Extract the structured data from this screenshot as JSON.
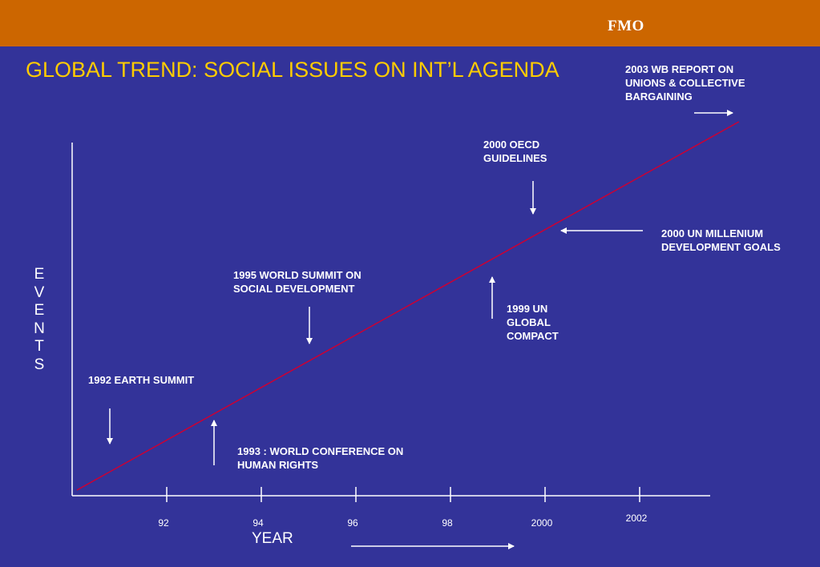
{
  "header": {
    "logo_text": "FMO",
    "bar_color": "#cc6600"
  },
  "colors": {
    "background": "#333399",
    "title": "#ffcc00",
    "trend_line": "#cc0033",
    "axis": "#ffffff"
  },
  "chart_data": {
    "type": "line",
    "title": "GLOBAL TREND: SOCIAL ISSUES ON INT’L AGENDA",
    "xlabel": "YEAR",
    "ylabel": "EVENTS",
    "x_ticks": [
      {
        "value": 1992,
        "label": "92"
      },
      {
        "value": 1994,
        "label": "94"
      },
      {
        "value": 1996,
        "label": "96"
      },
      {
        "value": 1998,
        "label": "98"
      },
      {
        "value": 2000,
        "label": "2000"
      },
      {
        "value": 2002,
        "label": "2002"
      }
    ],
    "xlim": [
      1990,
      2003
    ],
    "ylim": [
      0,
      10
    ],
    "grid": false,
    "legend": "none",
    "series": [
      {
        "x": [
          1990.1,
          2004.1
        ],
        "y": [
          0,
          10
        ]
      }
    ],
    "annotations": [
      {
        "text": "1992 EARTH SUMMIT",
        "year": 1992,
        "arrow": "down"
      },
      {
        "text": "1993 : WORLD CONFERENCE ON HUMAN RIGHTS",
        "year": 1993,
        "arrow": "up"
      },
      {
        "text": "1995 WORLD SUMMIT ON SOCIAL DEVELOPMENT",
        "year": 1995,
        "arrow": "down"
      },
      {
        "text": "1999 UN GLOBAL COMPACT",
        "year": 1999,
        "arrow": "up"
      },
      {
        "text": "2000 OECD GUIDELINES",
        "year": 2000,
        "arrow": "down"
      },
      {
        "text": "2000 UN MILLENIUM DEVELOPMENT GOALS",
        "year": 2000,
        "arrow": "left"
      },
      {
        "text": "2003 WB REPORT ON UNIONS & COLLECTIVE BARGAINING",
        "year": 2003,
        "arrow": "right"
      }
    ]
  }
}
